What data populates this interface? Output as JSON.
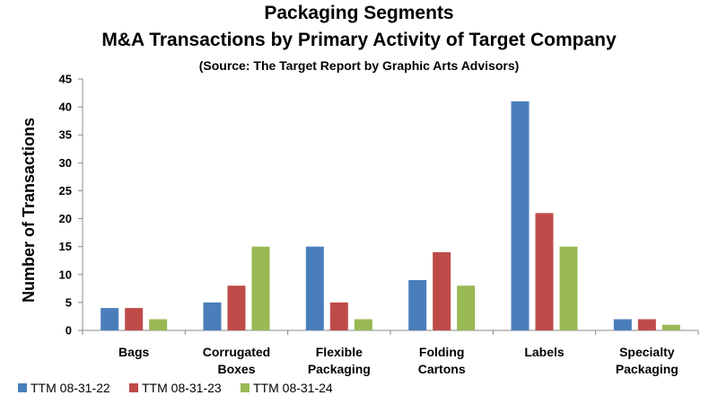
{
  "chart_data": {
    "type": "bar",
    "title": "Packaging Segments",
    "subtitle": "M&A Transactions by Primary Activity of Target Company",
    "source": "(Source: The Target Report by Graphic Arts Advisors)",
    "ylabel": "Number of Transactions",
    "xlabel": "",
    "ylim": [
      0,
      45
    ],
    "ytick_step": 5,
    "grid": false,
    "legend_position": "bottom-left",
    "categories": [
      [
        "Bags"
      ],
      [
        "Corrugated",
        "Boxes"
      ],
      [
        "Flexible",
        "Packaging"
      ],
      [
        "Folding",
        "Cartons"
      ],
      [
        "Labels"
      ],
      [
        "Specialty",
        "Packaging"
      ]
    ],
    "series": [
      {
        "name": "TTM 08-31-22",
        "color": "#4a7ebb",
        "values": [
          4,
          5,
          15,
          9,
          41,
          2
        ]
      },
      {
        "name": "TTM 08-31-23",
        "color": "#be4b48",
        "values": [
          4,
          8,
          5,
          14,
          21,
          2
        ]
      },
      {
        "name": "TTM 08-31-24",
        "color": "#98b954",
        "values": [
          2,
          15,
          2,
          8,
          15,
          1
        ]
      }
    ]
  }
}
